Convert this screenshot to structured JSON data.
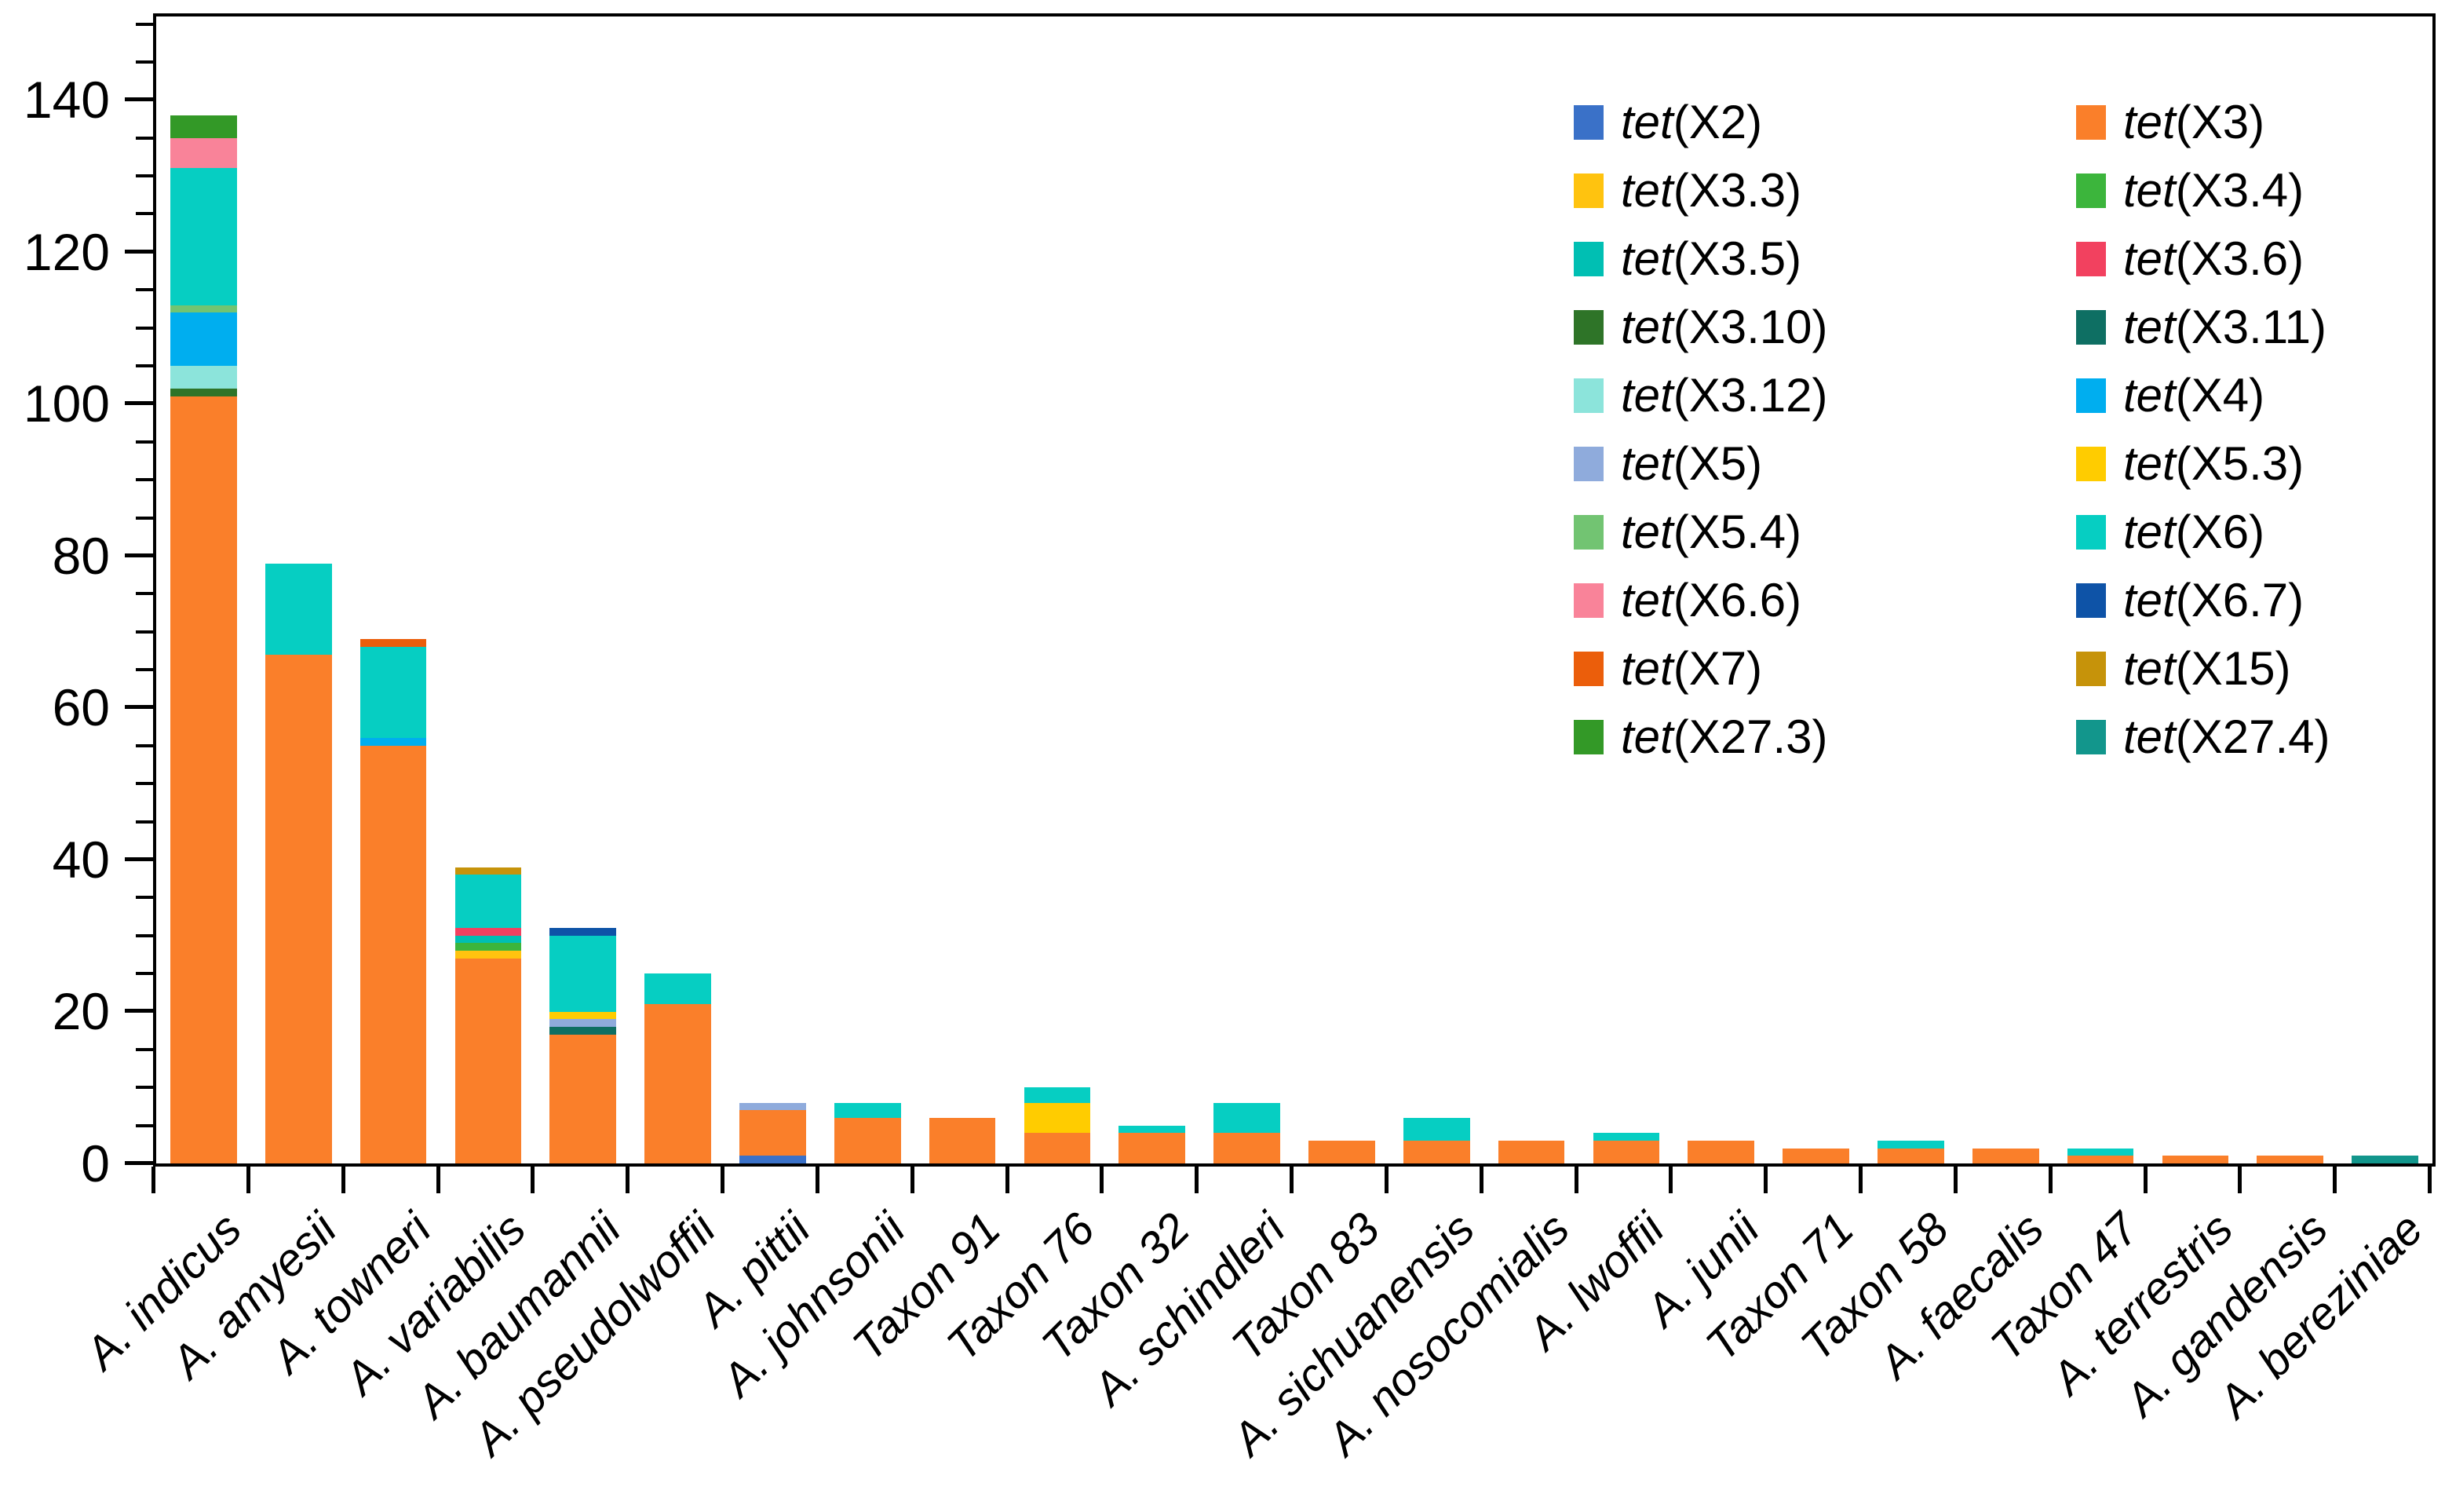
{
  "chart_data": {
    "type": "stacked-bar",
    "title": "",
    "xlabel": "",
    "ylabel": "",
    "ylim": [
      0,
      151.4
    ],
    "ytick_major_step": 20,
    "ytick_minor_step": 5,
    "ytick_labels": [
      "0",
      "20",
      "40",
      "60",
      "80",
      "100",
      "120",
      "140"
    ],
    "grid": false,
    "legend_position": "upper-right-inside",
    "legend": [
      {
        "gene": "tet(X2)",
        "color": "#3A71C8"
      },
      {
        "gene": "tet(X3)",
        "color": "#FA7F2A"
      },
      {
        "gene": "tet(X3.3)",
        "color": "#FFC30F"
      },
      {
        "gene": "tet(X3.4)",
        "color": "#3CB53C"
      },
      {
        "gene": "tet(X3.5)",
        "color": "#00BFB3"
      },
      {
        "gene": "tet(X3.6)",
        "color": "#F2415F"
      },
      {
        "gene": "tet(X3.10)",
        "color": "#2E7428"
      },
      {
        "gene": "tet(X3.11)",
        "color": "#0E6F63"
      },
      {
        "gene": "tet(X3.12)",
        "color": "#8CE4DB"
      },
      {
        "gene": "tet(X4)",
        "color": "#00AEEF"
      },
      {
        "gene": "tet(X5)",
        "color": "#8FABDC"
      },
      {
        "gene": "tet(X5.3)",
        "color": "#FFCC00"
      },
      {
        "gene": "tet(X5.4)",
        "color": "#72C472"
      },
      {
        "gene": "tet(X6)",
        "color": "#06CEC2"
      },
      {
        "gene": "tet(X6.6)",
        "color": "#F98399"
      },
      {
        "gene": "tet(X6.7)",
        "color": "#0E53A7"
      },
      {
        "gene": "tet(X7)",
        "color": "#EB5E0B"
      },
      {
        "gene": "tet(X15)",
        "color": "#C6930A"
      },
      {
        "gene": "tet(X27.3)",
        "color": "#339927"
      },
      {
        "gene": "tet(X27.4)",
        "color": "#12968C"
      }
    ],
    "bars": [
      {
        "species": "A. indicus",
        "total": 138,
        "segments": [
          {
            "gene": "tet(X3)",
            "value": 101
          },
          {
            "gene": "tet(X3.10)",
            "value": 1
          },
          {
            "gene": "tet(X3.12)",
            "value": 3
          },
          {
            "gene": "tet(X4)",
            "value": 7
          },
          {
            "gene": "tet(X5.4)",
            "value": 1
          },
          {
            "gene": "tet(X6)",
            "value": 18
          },
          {
            "gene": "tet(X6.6)",
            "value": 4
          },
          {
            "gene": "tet(X27.3)",
            "value": 3
          }
        ]
      },
      {
        "species": "A. amyesii",
        "total": 79,
        "segments": [
          {
            "gene": "tet(X3)",
            "value": 67
          },
          {
            "gene": "tet(X6)",
            "value": 12
          }
        ]
      },
      {
        "species": "A. towneri",
        "total": 69,
        "segments": [
          {
            "gene": "tet(X3)",
            "value": 55
          },
          {
            "gene": "tet(X4)",
            "value": 1
          },
          {
            "gene": "tet(X6)",
            "value": 12
          },
          {
            "gene": "tet(X7)",
            "value": 1
          }
        ]
      },
      {
        "species": "A. variabilis",
        "total": 39,
        "segments": [
          {
            "gene": "tet(X3)",
            "value": 27
          },
          {
            "gene": "tet(X3.3)",
            "value": 1
          },
          {
            "gene": "tet(X3.4)",
            "value": 1
          },
          {
            "gene": "tet(X3.5)",
            "value": 1
          },
          {
            "gene": "tet(X3.6)",
            "value": 1
          },
          {
            "gene": "tet(X6)",
            "value": 7
          },
          {
            "gene": "tet(X15)",
            "value": 1
          }
        ]
      },
      {
        "species": "A. baumannii",
        "total": 31,
        "segments": [
          {
            "gene": "tet(X3)",
            "value": 17
          },
          {
            "gene": "tet(X3.11)",
            "value": 1
          },
          {
            "gene": "tet(X5)",
            "value": 1
          },
          {
            "gene": "tet(X5.3)",
            "value": 1
          },
          {
            "gene": "tet(X6)",
            "value": 10
          },
          {
            "gene": "tet(X6.7)",
            "value": 1
          }
        ]
      },
      {
        "species": "A. pseudolwoffii",
        "total": 25,
        "segments": [
          {
            "gene": "tet(X3)",
            "value": 21
          },
          {
            "gene": "tet(X6)",
            "value": 4
          }
        ]
      },
      {
        "species": "A. pittii",
        "total": 8,
        "segments": [
          {
            "gene": "tet(X2)",
            "value": 1
          },
          {
            "gene": "tet(X3)",
            "value": 6
          },
          {
            "gene": "tet(X5)",
            "value": 1
          }
        ]
      },
      {
        "species": "A. johnsonii",
        "total": 8,
        "segments": [
          {
            "gene": "tet(X3)",
            "value": 6
          },
          {
            "gene": "tet(X6)",
            "value": 2
          }
        ]
      },
      {
        "species": "Taxon 91",
        "total": 6,
        "segments": [
          {
            "gene": "tet(X3)",
            "value": 6
          }
        ]
      },
      {
        "species": "Taxon 76",
        "total": 10,
        "segments": [
          {
            "gene": "tet(X3)",
            "value": 4
          },
          {
            "gene": "tet(X5.3)",
            "value": 4
          },
          {
            "gene": "tet(X6)",
            "value": 2
          }
        ]
      },
      {
        "species": "Taxon 32",
        "total": 5,
        "segments": [
          {
            "gene": "tet(X3)",
            "value": 4
          },
          {
            "gene": "tet(X6)",
            "value": 1
          }
        ]
      },
      {
        "species": "A. schindleri",
        "total": 8,
        "segments": [
          {
            "gene": "tet(X3)",
            "value": 4
          },
          {
            "gene": "tet(X6)",
            "value": 4
          }
        ]
      },
      {
        "species": "Taxon 83",
        "total": 3,
        "segments": [
          {
            "gene": "tet(X3)",
            "value": 3
          }
        ]
      },
      {
        "species": "A. sichuanensis",
        "total": 6,
        "segments": [
          {
            "gene": "tet(X3)",
            "value": 3
          },
          {
            "gene": "tet(X6)",
            "value": 3
          }
        ]
      },
      {
        "species": "A. nosocomialis",
        "total": 3,
        "segments": [
          {
            "gene": "tet(X3)",
            "value": 3
          }
        ]
      },
      {
        "species": "A. lwoffii",
        "total": 4,
        "segments": [
          {
            "gene": "tet(X3)",
            "value": 3
          },
          {
            "gene": "tet(X6)",
            "value": 1
          }
        ]
      },
      {
        "species": "A. junii",
        "total": 3,
        "segments": [
          {
            "gene": "tet(X3)",
            "value": 3
          }
        ]
      },
      {
        "species": "Taxon 71",
        "total": 2,
        "segments": [
          {
            "gene": "tet(X3)",
            "value": 2
          }
        ]
      },
      {
        "species": "Taxon 58",
        "total": 3,
        "segments": [
          {
            "gene": "tet(X3)",
            "value": 2
          },
          {
            "gene": "tet(X6)",
            "value": 1
          }
        ]
      },
      {
        "species": "A. faecalis",
        "total": 2,
        "segments": [
          {
            "gene": "tet(X3)",
            "value": 2
          }
        ]
      },
      {
        "species": "Taxon 47",
        "total": 2,
        "segments": [
          {
            "gene": "tet(X3)",
            "value": 1
          },
          {
            "gene": "tet(X6)",
            "value": 1
          }
        ]
      },
      {
        "species": "A. terrestris",
        "total": 1,
        "segments": [
          {
            "gene": "tet(X3)",
            "value": 1
          }
        ]
      },
      {
        "species": "A. gandensis",
        "total": 1,
        "segments": [
          {
            "gene": "tet(X3)",
            "value": 1
          }
        ]
      },
      {
        "species": "A. bereziniae",
        "total": 1,
        "segments": [
          {
            "gene": "tet(X27.4)",
            "value": 1
          }
        ]
      }
    ]
  }
}
